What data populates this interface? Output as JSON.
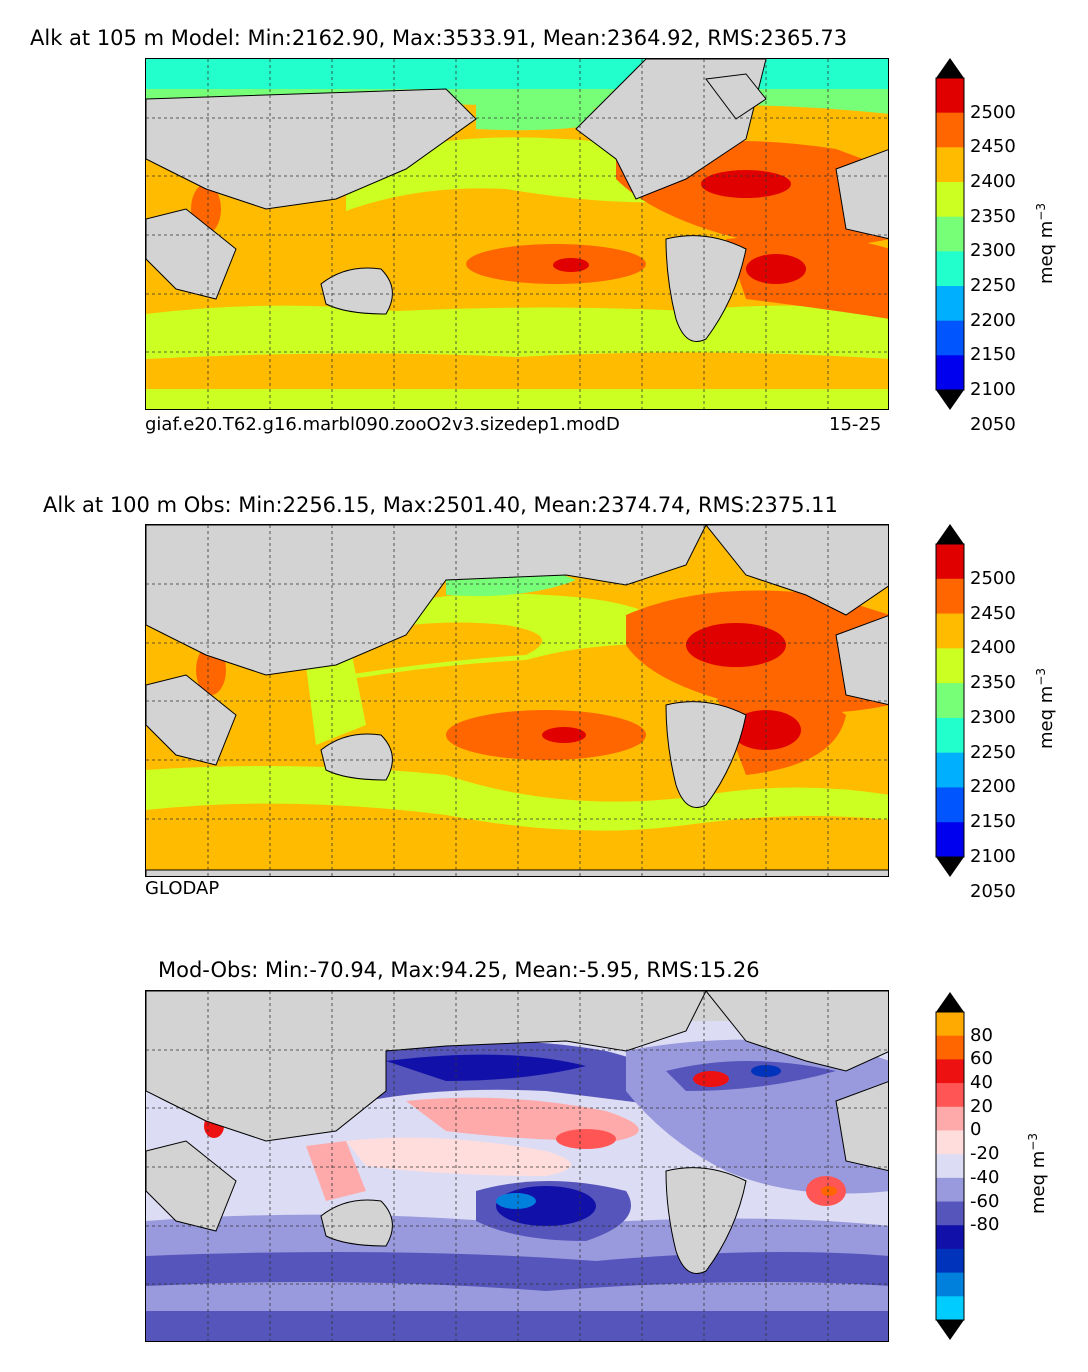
{
  "panels": [
    {
      "title": "Alk at 105 m Model: Min:2162.90, Max:3533.91, Mean:2364.92, RMS:2365.73",
      "subtitle_left": "giaf.e20.T62.g16.marbl090.zooO2v3.sizedep1.modD",
      "subtitle_right": "15-25",
      "colorbar": {
        "unit": "meq m",
        "unit_exp": "−3",
        "ticks": [
          "2500",
          "2450",
          "2400",
          "2350",
          "2300",
          "2250",
          "2200",
          "2150",
          "2100",
          "2050"
        ],
        "colors": [
          "#800000",
          "#e00000",
          "#ff6600",
          "#ffbb00",
          "#ccff22",
          "#77ff77",
          "#22ffcc",
          "#00b0ff",
          "#0055ff",
          "#0000ee",
          "#000080"
        ]
      }
    },
    {
      "title": "Alk at 100 m Obs: Min:2256.15, Max:2501.40, Mean:2374.74, RMS:2375.11",
      "subtitle_left": "GLODAP",
      "subtitle_right": "",
      "colorbar": {
        "unit": "meq m",
        "unit_exp": "−3",
        "ticks": [
          "2500",
          "2450",
          "2400",
          "2350",
          "2300",
          "2250",
          "2200",
          "2150",
          "2100",
          "2050"
        ],
        "colors": [
          "#800000",
          "#e00000",
          "#ff6600",
          "#ffbb00",
          "#ccff22",
          "#77ff77",
          "#22ffcc",
          "#00b0ff",
          "#0055ff",
          "#0000ee",
          "#000080"
        ]
      }
    },
    {
      "title": "Mod-Obs: Min:-70.94, Max:94.25, Mean:-5.95, RMS:15.26",
      "subtitle_left": "",
      "subtitle_right": "",
      "colorbar": {
        "unit": "meq m",
        "unit_exp": "−3",
        "ticks": [
          "80",
          "60",
          "40",
          "20",
          "0",
          "-20",
          "-40",
          "-60",
          "-80"
        ],
        "colors": [
          "#ffff00",
          "#ffaa00",
          "#ff6600",
          "#ee1111",
          "#ff5555",
          "#ffaaaa",
          "#ffdddd",
          "#dcdcf4",
          "#9999dd",
          "#5555bb",
          "#1111aa",
          "#0033bb",
          "#0080dd",
          "#00ccff",
          "#00ffff"
        ]
      }
    }
  ]
}
